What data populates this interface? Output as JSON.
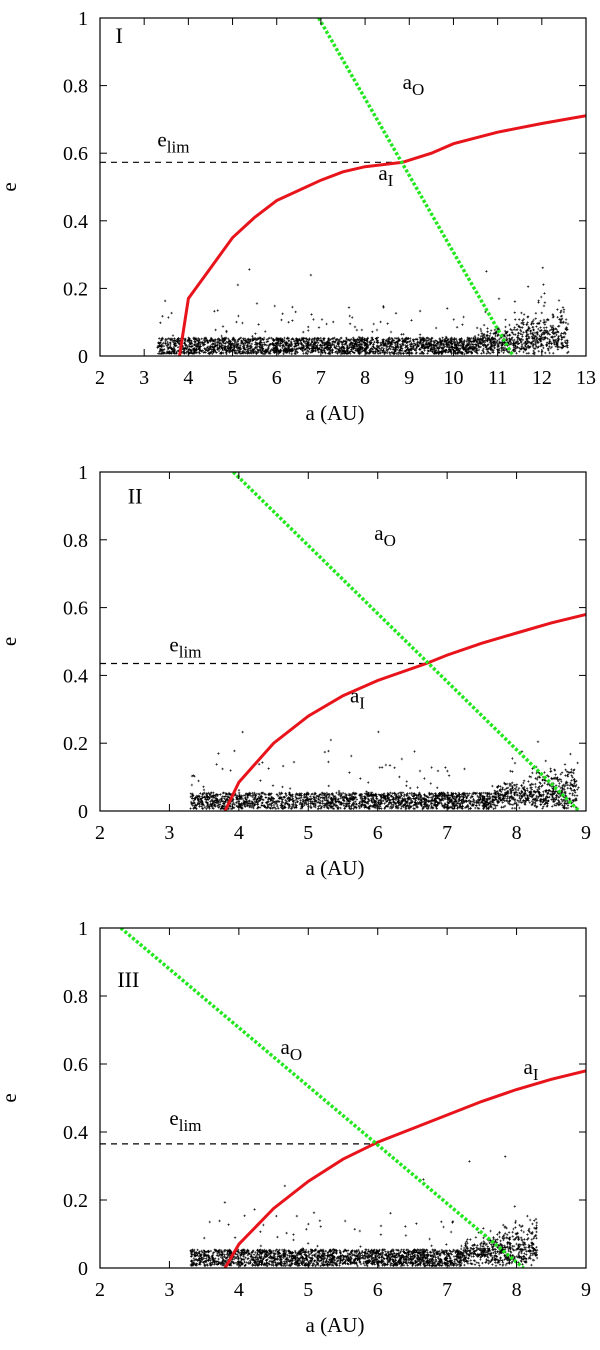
{
  "chart_data": [
    {
      "type": "scatter",
      "panel_label": "I",
      "xlabel": "a (AU)",
      "ylabel": "e",
      "xlim": [
        2,
        13
      ],
      "ylim": [
        0,
        1
      ],
      "xticks": [
        2,
        3,
        4,
        5,
        6,
        7,
        8,
        9,
        10,
        11,
        12,
        13
      ],
      "yticks": [
        0,
        0.2,
        0.4,
        0.6,
        0.8,
        1
      ],
      "grid": false,
      "colors": {
        "a_I": "#e8141b",
        "a_O": "#22e61e",
        "particles": "#000000",
        "e_lim": "#000000"
      },
      "e_lim": {
        "label_main": "e",
        "label_sub": "lim",
        "value": 0.573,
        "x_range": [
          2.0,
          8.85
        ]
      },
      "a_O_line": {
        "label_main": "a",
        "label_sub": "O",
        "points": [
          [
            6.95,
            1.0
          ],
          [
            11.35,
            0.0
          ]
        ]
      },
      "a_I_curve": {
        "label_main": "a",
        "label_sub": "I",
        "asymptote_a": 9.5,
        "points": [
          [
            3.8,
            0.0
          ],
          [
            4.0,
            0.17
          ],
          [
            4.5,
            0.26
          ],
          [
            5.0,
            0.35
          ],
          [
            5.5,
            0.41
          ],
          [
            6.0,
            0.46
          ],
          [
            6.5,
            0.49
          ],
          [
            7.0,
            0.52
          ],
          [
            7.5,
            0.545
          ],
          [
            8.0,
            0.56
          ],
          [
            8.85,
            0.573
          ],
          [
            9.5,
            0.6
          ],
          [
            10.0,
            0.628
          ],
          [
            11.0,
            0.662
          ],
          [
            12.0,
            0.688
          ],
          [
            13.0,
            0.711
          ]
        ]
      },
      "particles": {
        "a_range": [
          3.3,
          12.6
        ],
        "e_base": 0.03,
        "count": 3000
      }
    },
    {
      "type": "scatter",
      "panel_label": "II",
      "xlabel": "a (AU)",
      "ylabel": "e",
      "xlim": [
        2,
        9
      ],
      "ylim": [
        0,
        1
      ],
      "xticks": [
        2,
        3,
        4,
        5,
        6,
        7,
        8,
        9
      ],
      "yticks": [
        0,
        0.2,
        0.4,
        0.6,
        0.8,
        1
      ],
      "grid": false,
      "colors": {
        "a_I": "#e8141b",
        "a_O": "#22e61e",
        "particles": "#000000",
        "e_lim": "#000000"
      },
      "e_lim": {
        "label_main": "e",
        "label_sub": "lim",
        "value": 0.435,
        "x_range": [
          2.0,
          6.7
        ]
      },
      "a_O_line": {
        "label_main": "a",
        "label_sub": "O",
        "points": [
          [
            3.92,
            1.0
          ],
          [
            8.9,
            0.0
          ]
        ]
      },
      "a_I_curve": {
        "label_main": "a",
        "label_sub": "I",
        "asymptote_a": 6.7,
        "points": [
          [
            3.8,
            0.0
          ],
          [
            4.0,
            0.085
          ],
          [
            4.5,
            0.2
          ],
          [
            5.0,
            0.28
          ],
          [
            5.5,
            0.34
          ],
          [
            6.0,
            0.385
          ],
          [
            6.7,
            0.435
          ],
          [
            7.0,
            0.46
          ],
          [
            7.5,
            0.495
          ],
          [
            8.0,
            0.525
          ],
          [
            8.5,
            0.555
          ],
          [
            9.0,
            0.58
          ]
        ]
      },
      "particles": {
        "a_range": [
          3.3,
          8.9
        ],
        "e_base": 0.03,
        "count": 2500
      }
    },
    {
      "type": "scatter",
      "panel_label": "III",
      "xlabel": "a (AU)",
      "ylabel": "e",
      "xlim": [
        2,
        9
      ],
      "ylim": [
        0,
        1
      ],
      "xticks": [
        2,
        3,
        4,
        5,
        6,
        7,
        8,
        9
      ],
      "yticks": [
        0,
        0.2,
        0.4,
        0.6,
        0.8,
        1
      ],
      "grid": false,
      "colors": {
        "a_I": "#e8141b",
        "a_O": "#22e61e",
        "particles": "#000000",
        "e_lim": "#000000"
      },
      "e_lim": {
        "label_main": "e",
        "label_sub": "lim",
        "value": 0.365,
        "x_range": [
          2.0,
          6.0
        ]
      },
      "a_O_line": {
        "label_main": "a",
        "label_sub": "O",
        "points": [
          [
            2.3,
            1.0
          ],
          [
            8.1,
            0.0
          ]
        ]
      },
      "a_I_curve": {
        "label_main": "a",
        "label_sub": "I",
        "asymptote_a": 6.0,
        "points": [
          [
            3.8,
            0.0
          ],
          [
            4.0,
            0.07
          ],
          [
            4.5,
            0.175
          ],
          [
            5.0,
            0.255
          ],
          [
            5.5,
            0.32
          ],
          [
            6.0,
            0.37
          ],
          [
            6.5,
            0.41
          ],
          [
            7.0,
            0.45
          ],
          [
            7.5,
            0.49
          ],
          [
            8.0,
            0.525
          ],
          [
            8.5,
            0.555
          ],
          [
            9.0,
            0.58
          ]
        ]
      },
      "particles": {
        "a_range": [
          3.3,
          8.3
        ],
        "e_base": 0.03,
        "count": 2500
      }
    }
  ]
}
